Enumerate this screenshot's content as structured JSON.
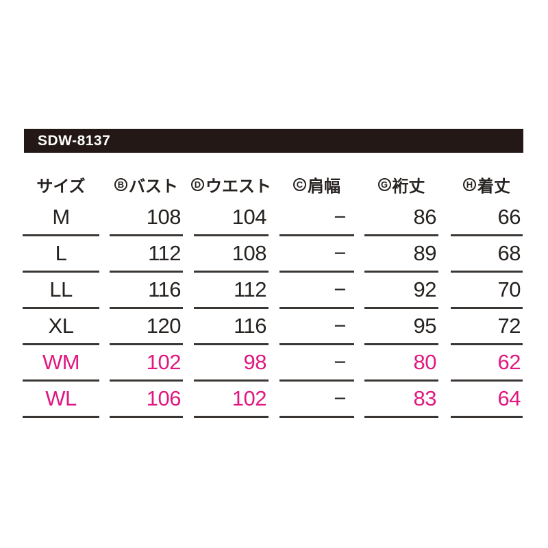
{
  "header_bar": {
    "model_code": "SDW-8137"
  },
  "chart_data": {
    "type": "table",
    "title": "SDW-8137",
    "columns": [
      {
        "circle_letter": "",
        "label": "サイズ"
      },
      {
        "circle_letter": "B",
        "label": "バスト"
      },
      {
        "circle_letter": "D",
        "label": "ウエスト"
      },
      {
        "circle_letter": "C",
        "label": "肩幅"
      },
      {
        "circle_letter": "G",
        "label": "裄丈"
      },
      {
        "circle_letter": "H",
        "label": "着丈"
      }
    ],
    "rows": [
      {
        "size": "M",
        "bust": "108",
        "waist": "104",
        "shoulder_width": "−",
        "sleeve_length": "86",
        "body_length": "66",
        "highlight": false
      },
      {
        "size": "L",
        "bust": "112",
        "waist": "108",
        "shoulder_width": "−",
        "sleeve_length": "89",
        "body_length": "68",
        "highlight": false
      },
      {
        "size": "LL",
        "bust": "116",
        "waist": "112",
        "shoulder_width": "−",
        "sleeve_length": "92",
        "body_length": "70",
        "highlight": false
      },
      {
        "size": "XL",
        "bust": "120",
        "waist": "116",
        "shoulder_width": "−",
        "sleeve_length": "95",
        "body_length": "72",
        "highlight": false
      },
      {
        "size": "WM",
        "bust": "102",
        "waist": "98",
        "shoulder_width": "−",
        "sleeve_length": "80",
        "body_length": "62",
        "highlight": true
      },
      {
        "size": "WL",
        "bust": "106",
        "waist": "102",
        "shoulder_width": "−",
        "sleeve_length": "83",
        "body_length": "64",
        "highlight": true
      }
    ]
  },
  "colors": {
    "bar_background": "#231815",
    "bar_text": "#ffffff",
    "text_black": "#262220",
    "highlight_pink": "#e0187f",
    "row_line": "#3a3634"
  }
}
